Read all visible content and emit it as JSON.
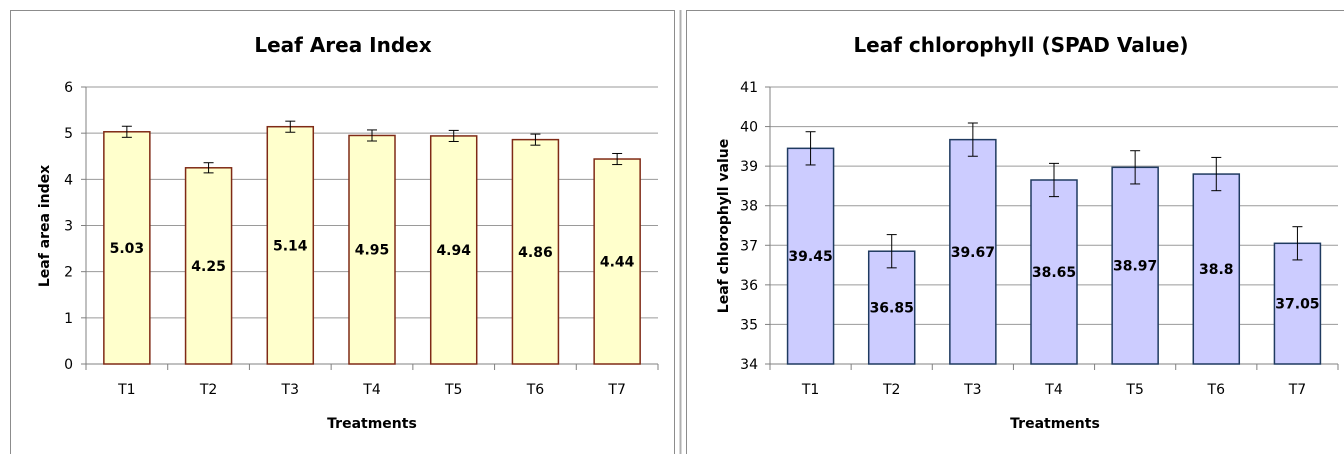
{
  "chart_data": [
    {
      "type": "bar",
      "title": "Leaf Area Index",
      "xlabel": "Treatments",
      "ylabel": "Leaf area index",
      "categories": [
        "T1",
        "T2",
        "T3",
        "T4",
        "T5",
        "T6",
        "T7"
      ],
      "values": [
        5.03,
        4.25,
        5.14,
        4.95,
        4.94,
        4.86,
        4.44
      ],
      "data_labels": [
        "5.03",
        "4.25",
        "5.14",
        "4.95",
        "4.94",
        "4.86",
        "4.44"
      ],
      "errors": [
        0.12,
        0.11,
        0.12,
        0.12,
        0.12,
        0.12,
        0.12
      ],
      "ylim": [
        0,
        6
      ],
      "yticks": [
        "0",
        "1",
        "2",
        "3",
        "4",
        "5",
        "6"
      ],
      "grid": true,
      "legend": "none",
      "bar_fill": "#FFFFCC",
      "bar_stroke": "#7F2A16"
    },
    {
      "type": "bar",
      "title": "Leaf chlorophyll (SPAD Value)",
      "xlabel": "Treatments",
      "ylabel": "Leaf chlorophyll value",
      "categories": [
        "T1",
        "T2",
        "T3",
        "T4",
        "T5",
        "T6",
        "T7"
      ],
      "values": [
        39.45,
        36.85,
        39.67,
        38.65,
        38.97,
        38.8,
        37.05
      ],
      "data_labels": [
        "39.45",
        "36.85",
        "39.67",
        "38.65",
        "38.97",
        "38.8",
        "37.05"
      ],
      "errors": [
        0.42,
        0.42,
        0.42,
        0.42,
        0.42,
        0.42,
        0.42
      ],
      "ylim": [
        34,
        41
      ],
      "yticks": [
        "34",
        "35",
        "36",
        "37",
        "38",
        "39",
        "40",
        "41"
      ],
      "grid": true,
      "legend": "none",
      "bar_fill": "#CCCCFF",
      "bar_stroke": "#1F3A60"
    }
  ]
}
